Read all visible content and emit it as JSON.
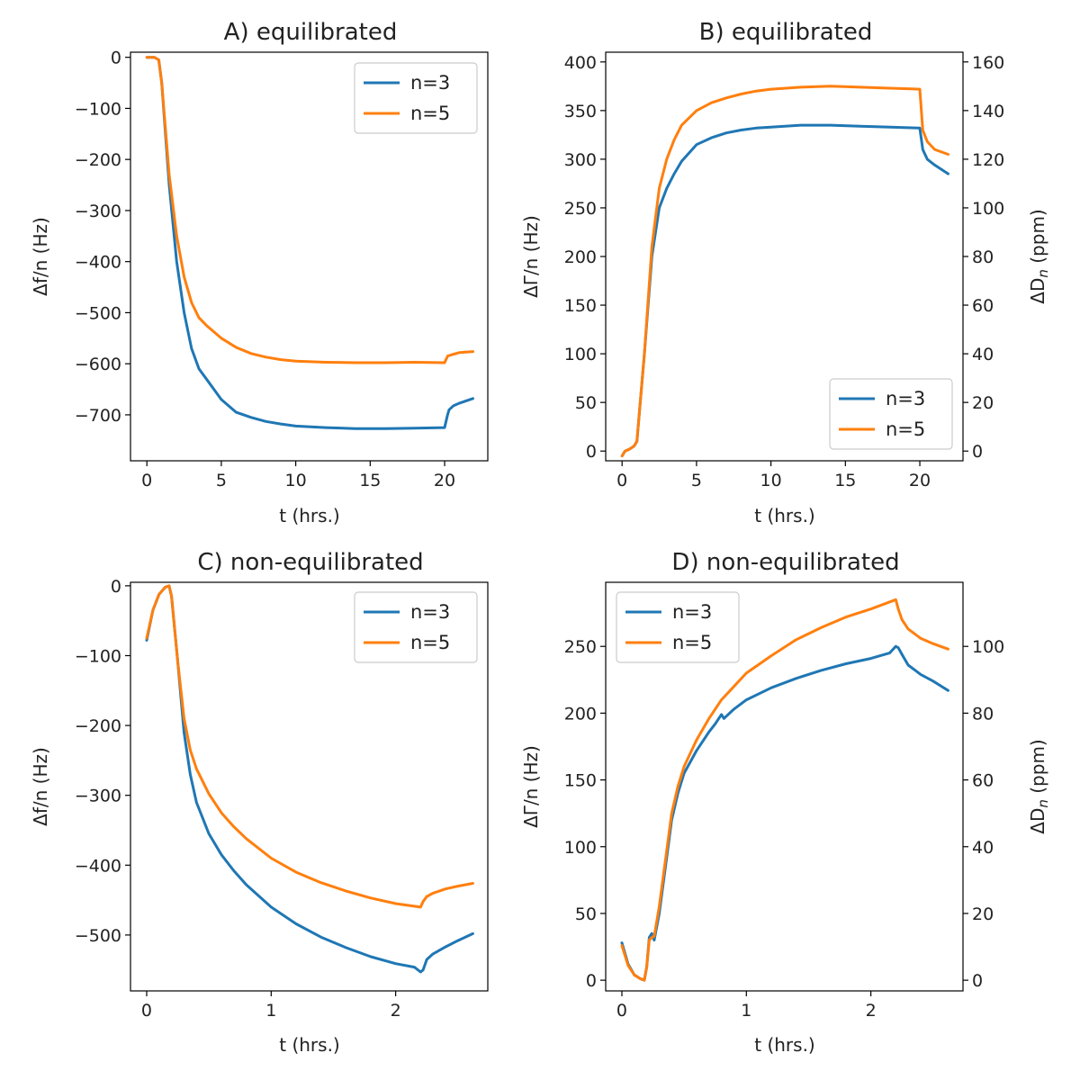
{
  "colors": {
    "n3": "#1f77b4",
    "n5": "#ff7f0e"
  },
  "chart_data": [
    {
      "id": "A",
      "type": "line",
      "title": "A) equilibrated",
      "xlabel": "t (hrs.)",
      "ylabel": "Δf/n (Hz)",
      "xlim": [
        -1.1,
        22.9
      ],
      "ylim": [
        -790,
        10
      ],
      "xticks": [
        0,
        5,
        10,
        15,
        20
      ],
      "xtick_labels": [
        "0",
        "5",
        "10",
        "15",
        "20"
      ],
      "yticks": [
        0,
        -100,
        -200,
        -300,
        -400,
        -500,
        -600,
        -700
      ],
      "ytick_labels": [
        "0",
        "−100",
        "−200",
        "−300",
        "−400",
        "−500",
        "−600",
        "−700"
      ],
      "legend": "top-right",
      "series": [
        {
          "name": "n=3",
          "color_key": "n3",
          "x": [
            0,
            0.2,
            0.5,
            0.8,
            1.0,
            1.5,
            2.0,
            2.5,
            3.0,
            3.5,
            4.0,
            5.0,
            6.0,
            7.0,
            8.0,
            9.0,
            10.0,
            12.0,
            14.0,
            16.0,
            18.0,
            20.0,
            20.2,
            20.3,
            20.6,
            21.0,
            21.9
          ],
          "y": [
            0,
            0,
            0,
            -5,
            -50,
            -250,
            -400,
            -500,
            -570,
            -610,
            -630,
            -670,
            -695,
            -705,
            -713,
            -718,
            -722,
            -725,
            -727,
            -727,
            -726,
            -725,
            -700,
            -690,
            -682,
            -677,
            -668
          ]
        },
        {
          "name": "n=5",
          "color_key": "n5",
          "x": [
            0,
            0.2,
            0.5,
            0.8,
            1.0,
            1.5,
            2.0,
            2.5,
            3.0,
            3.5,
            4.0,
            5.0,
            6.0,
            7.0,
            8.0,
            9.0,
            10.0,
            12.0,
            14.0,
            16.0,
            18.0,
            20.0,
            20.2,
            20.5,
            21.0,
            21.9
          ],
          "y": [
            0,
            0,
            0,
            -5,
            -50,
            -230,
            -350,
            -430,
            -480,
            -510,
            -525,
            -550,
            -568,
            -580,
            -587,
            -592,
            -595,
            -597,
            -598,
            -598,
            -597,
            -598,
            -585,
            -582,
            -578,
            -576
          ]
        }
      ]
    },
    {
      "id": "B",
      "type": "line",
      "title": "B) equilibrated",
      "xlabel": "t (hrs.)",
      "ylabel": "ΔΓ/n (Hz)",
      "ylabel_right": "ΔD_n (ppm)",
      "xlim": [
        -1.1,
        22.9
      ],
      "ylim": [
        -10,
        410
      ],
      "xticks": [
        0,
        5,
        10,
        15,
        20
      ],
      "xtick_labels": [
        "0",
        "5",
        "10",
        "15",
        "20"
      ],
      "yticks": [
        0,
        50,
        100,
        150,
        200,
        250,
        300,
        350,
        400
      ],
      "ytick_labels": [
        "0",
        "50",
        "100",
        "150",
        "200",
        "250",
        "300",
        "350",
        "400"
      ],
      "ylim_right": [
        -4,
        164
      ],
      "yticks_right": [
        0,
        20,
        40,
        60,
        80,
        100,
        120,
        140,
        160
      ],
      "ytick_labels_right": [
        "0",
        "20",
        "40",
        "60",
        "80",
        "100",
        "120",
        "140",
        "160"
      ],
      "legend": "bottom-right",
      "series": [
        {
          "name": "n=3",
          "color_key": "n3",
          "x": [
            0,
            0.2,
            0.5,
            0.8,
            1.0,
            1.5,
            2.0,
            2.5,
            3.0,
            3.5,
            4.0,
            5.0,
            6.0,
            7.0,
            8.0,
            9.0,
            10.0,
            12.0,
            14.0,
            16.0,
            18.0,
            20.0,
            20.2,
            20.5,
            21.0,
            21.9
          ],
          "y": [
            -5,
            0,
            2,
            5,
            10,
            100,
            200,
            250,
            270,
            285,
            298,
            315,
            322,
            327,
            330,
            332,
            333,
            335,
            335,
            334,
            333,
            332,
            310,
            300,
            294,
            285
          ]
        },
        {
          "name": "n=5",
          "color_key": "n5",
          "x": [
            0,
            0.2,
            0.5,
            0.8,
            1.0,
            1.5,
            2.0,
            2.5,
            3.0,
            3.5,
            4.0,
            5.0,
            6.0,
            7.0,
            8.0,
            9.0,
            10.0,
            12.0,
            14.0,
            16.0,
            18.0,
            20.0,
            20.2,
            20.5,
            21.0,
            21.9
          ],
          "y": [
            -5,
            0,
            2,
            5,
            10,
            100,
            210,
            270,
            300,
            320,
            335,
            350,
            358,
            363,
            367,
            370,
            372,
            374,
            375,
            374,
            373,
            372,
            330,
            318,
            310,
            305
          ]
        }
      ]
    },
    {
      "id": "C",
      "type": "line",
      "title": "C) non-equilibrated",
      "xlabel": "t (hrs.)",
      "ylabel": "Δf/n (Hz)",
      "xlim": [
        -0.13,
        2.74
      ],
      "ylim": [
        -580,
        5
      ],
      "xticks": [
        0,
        1,
        2
      ],
      "xtick_labels": [
        "0",
        "1",
        "2"
      ],
      "yticks": [
        0,
        -100,
        -200,
        -300,
        -400,
        -500
      ],
      "ytick_labels": [
        "0",
        "−100",
        "−200",
        "−300",
        "−400",
        "−500"
      ],
      "legend": "top-right",
      "series": [
        {
          "name": "n=3",
          "color_key": "n3",
          "x": [
            0,
            0.05,
            0.1,
            0.15,
            0.18,
            0.2,
            0.25,
            0.3,
            0.35,
            0.4,
            0.5,
            0.6,
            0.7,
            0.8,
            1.0,
            1.2,
            1.4,
            1.6,
            1.8,
            2.0,
            2.15,
            2.2,
            2.22,
            2.25,
            2.3,
            2.4,
            2.5,
            2.62
          ],
          "y": [
            -78,
            -35,
            -12,
            -2,
            0,
            -15,
            -110,
            -210,
            -270,
            -310,
            -355,
            -385,
            -408,
            -428,
            -460,
            -484,
            -503,
            -518,
            -531,
            -541,
            -546,
            -553,
            -550,
            -535,
            -527,
            -517,
            -508,
            -498
          ]
        },
        {
          "name": "n=5",
          "color_key": "n5",
          "x": [
            0,
            0.05,
            0.1,
            0.15,
            0.18,
            0.2,
            0.25,
            0.3,
            0.35,
            0.4,
            0.5,
            0.6,
            0.7,
            0.8,
            1.0,
            1.2,
            1.4,
            1.6,
            1.8,
            2.0,
            2.2,
            2.22,
            2.25,
            2.3,
            2.4,
            2.5,
            2.62
          ],
          "y": [
            -75,
            -35,
            -12,
            -2,
            0,
            -15,
            -110,
            -190,
            -235,
            -262,
            -298,
            -325,
            -345,
            -362,
            -390,
            -410,
            -425,
            -437,
            -447,
            -455,
            -460,
            -452,
            -445,
            -440,
            -434,
            -430,
            -426
          ]
        }
      ]
    },
    {
      "id": "D",
      "type": "line",
      "title": "D) non-equilibrated",
      "xlabel": "t (hrs.)",
      "ylabel": "ΔΓ/n (Hz)",
      "ylabel_right": "ΔD_n (ppm)",
      "xlim": [
        -0.13,
        2.74
      ],
      "ylim": [
        -8,
        298
      ],
      "xticks": [
        0,
        1,
        2
      ],
      "xtick_labels": [
        "0",
        "1",
        "2"
      ],
      "yticks": [
        0,
        50,
        100,
        150,
        200,
        250
      ],
      "ytick_labels": [
        "0",
        "50",
        "100",
        "150",
        "200",
        "250"
      ],
      "ylim_right": [
        -3.2,
        119.2
      ],
      "yticks_right": [
        0,
        20,
        40,
        60,
        80,
        100
      ],
      "ytick_labels_right": [
        "0",
        "20",
        "40",
        "60",
        "80",
        "100"
      ],
      "legend": "top-left",
      "series": [
        {
          "name": "n=3",
          "color_key": "n3",
          "x": [
            0,
            0.05,
            0.1,
            0.15,
            0.18,
            0.2,
            0.22,
            0.24,
            0.26,
            0.3,
            0.35,
            0.4,
            0.45,
            0.5,
            0.6,
            0.7,
            0.75,
            0.8,
            0.82,
            0.9,
            1.0,
            1.2,
            1.4,
            1.6,
            1.8,
            2.0,
            2.15,
            2.2,
            2.22,
            2.25,
            2.3,
            2.4,
            2.5,
            2.62
          ],
          "y": [
            28,
            12,
            4,
            1,
            0,
            10,
            32,
            35,
            30,
            50,
            85,
            120,
            140,
            155,
            172,
            186,
            192,
            199,
            196,
            203,
            210,
            219,
            226,
            232,
            237,
            241,
            245,
            250,
            249,
            244,
            236,
            229,
            224,
            217
          ]
        },
        {
          "name": "n=5",
          "color_key": "n5",
          "x": [
            0,
            0.05,
            0.1,
            0.15,
            0.18,
            0.2,
            0.22,
            0.24,
            0.26,
            0.3,
            0.35,
            0.4,
            0.45,
            0.5,
            0.6,
            0.7,
            0.8,
            0.9,
            1.0,
            1.2,
            1.4,
            1.6,
            1.8,
            2.0,
            2.2,
            2.22,
            2.25,
            2.3,
            2.4,
            2.5,
            2.62
          ],
          "y": [
            26,
            11,
            4,
            1,
            0,
            10,
            30,
            32,
            33,
            55,
            90,
            125,
            145,
            160,
            180,
            196,
            210,
            220,
            230,
            243,
            255,
            264,
            272,
            278,
            285,
            278,
            270,
            263,
            256,
            252,
            248
          ]
        }
      ]
    }
  ]
}
